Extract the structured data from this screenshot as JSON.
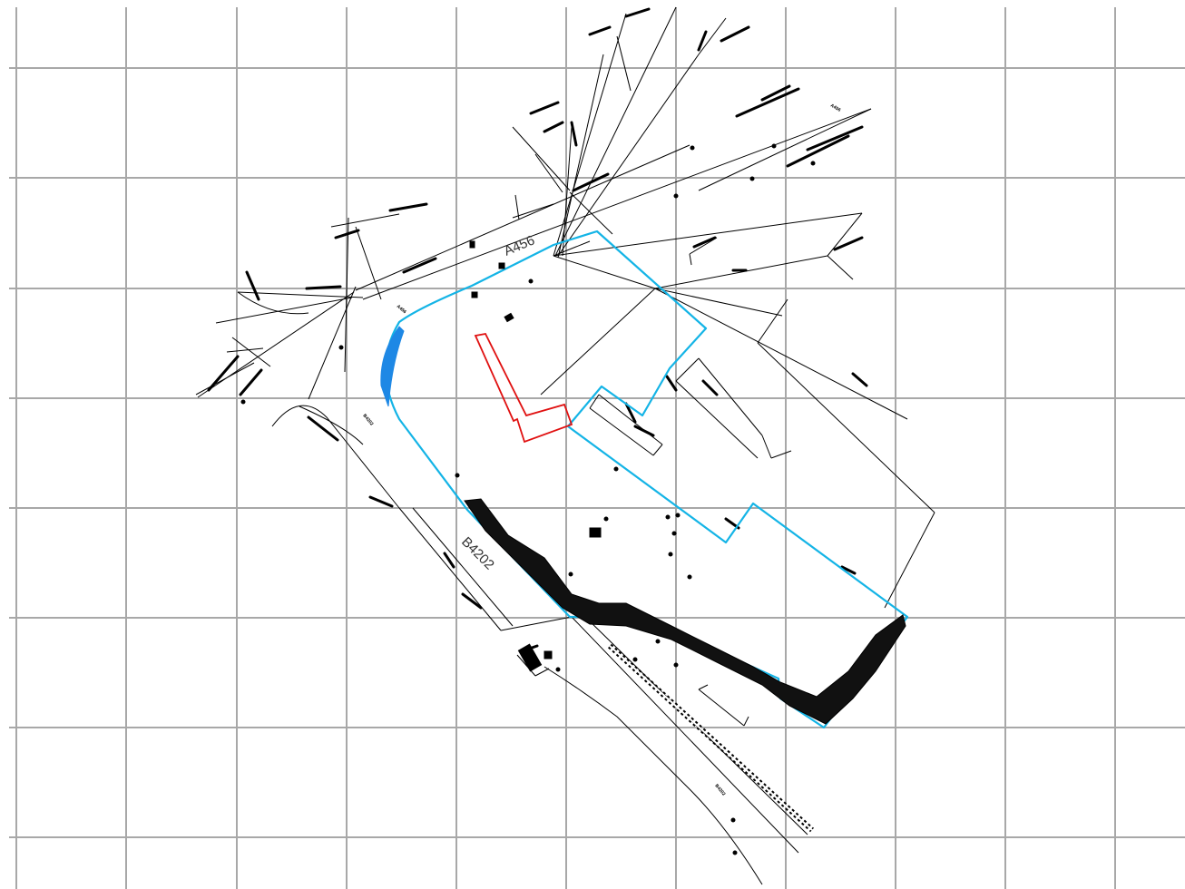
{
  "map": {
    "road_labels": {
      "a456": "A456",
      "b4202": "B4202"
    },
    "mini_labels": {
      "a456_small_1": "A456",
      "a456_small_2": "A456",
      "b4202_small_1": "B4202",
      "b4202_small_2": "B4202"
    },
    "colors": {
      "grid": "#a8a8a8",
      "site_boundary": "#14b4e6",
      "building_outline": "#e01010",
      "water": "#1e88e5",
      "linework": "#000000"
    }
  }
}
